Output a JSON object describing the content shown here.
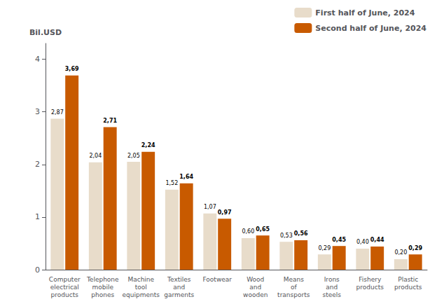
{
  "chart_data": {
    "type": "bar",
    "ylabel": "Bil.USD",
    "categories": [
      "Computer\nelectrical\nproducts",
      "Telephone\nmobile\nphones",
      "Machine\ntool\nequipments",
      "Textiles\nand\ngarments",
      "Footwear",
      "Wood\nand\nwooden",
      "Means\nof\ntransports",
      "Irons\nand\nsteels",
      "Fishery\nproducts",
      "Plastic\nproducts"
    ],
    "series": [
      {
        "name": "First half of June, 2024",
        "color": "#E8DCCA",
        "values": [
          2.87,
          2.04,
          2.05,
          1.52,
          1.07,
          0.6,
          0.53,
          0.29,
          0.4,
          0.2
        ],
        "value_labels": [
          "2,87",
          "2,04",
          "2,05",
          "1,52",
          "1,07",
          "0,60",
          "0,53",
          "0,29",
          "0,40",
          "0,20"
        ]
      },
      {
        "name": "Second half of June, 2024",
        "color": "#C85A00",
        "values": [
          3.69,
          2.71,
          2.24,
          1.64,
          0.97,
          0.65,
          0.56,
          0.45,
          0.44,
          0.29
        ],
        "value_labels": [
          "3,69",
          "2,71",
          "2,24",
          "1,64",
          "0,97",
          "0,65",
          "0,56",
          "0,45",
          "0,44",
          "0,29"
        ]
      }
    ],
    "ylim": [
      0,
      4.3
    ],
    "yticks": [
      0,
      1,
      2,
      3,
      4
    ],
    "grid": false,
    "legend": "upper right",
    "data_labels": true
  }
}
